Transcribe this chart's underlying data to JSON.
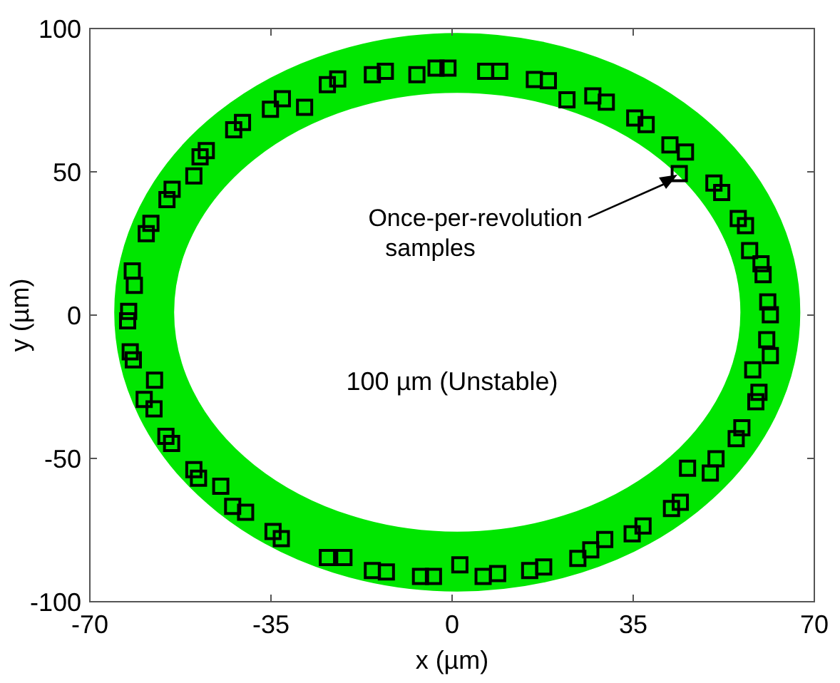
{
  "chart_data": {
    "type": "scatter",
    "xlabel": "x (µm)",
    "ylabel": "y (µm)",
    "xlim": [
      -70,
      70
    ],
    "ylim": [
      -100,
      100
    ],
    "xticks": [
      -70,
      -35,
      0,
      35,
      70
    ],
    "yticks": [
      -100,
      -50,
      0,
      50,
      100
    ],
    "annotations": [
      "Once-per-revolution\nsamples",
      "100 µm (Unstable)"
    ],
    "series": [
      {
        "marker": "square",
        "color": "#000000",
        "x": [
          -62.7,
          -62.5,
          -61.4,
          -61.8,
          -59.1,
          -58.2,
          -55.1,
          -54.1,
          -49.9,
          -48.7,
          -47.5,
          -42.2,
          -40.5,
          -35.1,
          -32.8,
          -28.5,
          -24.1,
          -22.1,
          -15.4,
          -12.9,
          -6.8,
          -3.1,
          -0.8,
          6.5,
          9.2,
          15.9,
          18.6,
          22.2,
          27.2,
          29.8,
          35.3,
          37.5,
          42.1,
          45.1,
          43.9,
          50.6,
          52.1,
          55.3,
          56.7,
          57.5,
          59.7,
          60.1,
          61,
          61.5,
          60.8,
          61.5,
          58.1,
          59.3,
          58.7,
          56,
          54.9,
          51,
          49.9,
          45.5,
          44.1,
          42.4,
          36.9,
          34.8,
          29.5,
          26.8,
          24.3,
          17.7,
          15,
          8.8,
          6,
          1.5,
          -3.6,
          -6.1,
          -62.2,
          -61.6,
          -57.5,
          -59.5,
          -57.6,
          -55.3,
          -54.2,
          -49.9,
          -49,
          -44.7,
          -42.4,
          -39.9,
          -34.6,
          -33,
          -24.1,
          -20.9,
          -15.4,
          -12.7
        ],
        "values": [
          -2,
          1.3,
          10.4,
          15.4,
          28.4,
          32,
          40.3,
          43.9,
          48.6,
          55.2,
          57.4,
          64.7,
          67.2,
          71.8,
          75.5,
          72.5,
          80.4,
          82.4,
          83.9,
          85.1,
          83.9,
          86.2,
          86.2,
          85.1,
          85.1,
          82.2,
          81.8,
          75.1,
          76.5,
          74.3,
          68.8,
          66.5,
          59.4,
          56.9,
          49.4,
          46.1,
          42.8,
          33.7,
          31.2,
          22.5,
          17.9,
          14.1,
          4.6,
          0.1,
          -8.6,
          -14.1,
          -19.1,
          -26.9,
          -30.2,
          -39.3,
          -43.1,
          -50.1,
          -55.1,
          -53.4,
          -65.3,
          -67.5,
          -73.6,
          -76.3,
          -78.3,
          -81.9,
          -84.9,
          -87.9,
          -89.1,
          -90.2,
          -91.2,
          -87.1,
          -91.2,
          -91.2,
          -12.8,
          -15.6,
          -22.7,
          -29.4,
          -32.7,
          -42.3,
          -44.8,
          -53.9,
          -56.9,
          -59.7,
          -66.7,
          -68.8,
          -75.5,
          -78,
          -84.6,
          -84.6,
          -89.1,
          -89.6
        ]
      }
    ]
  }
}
